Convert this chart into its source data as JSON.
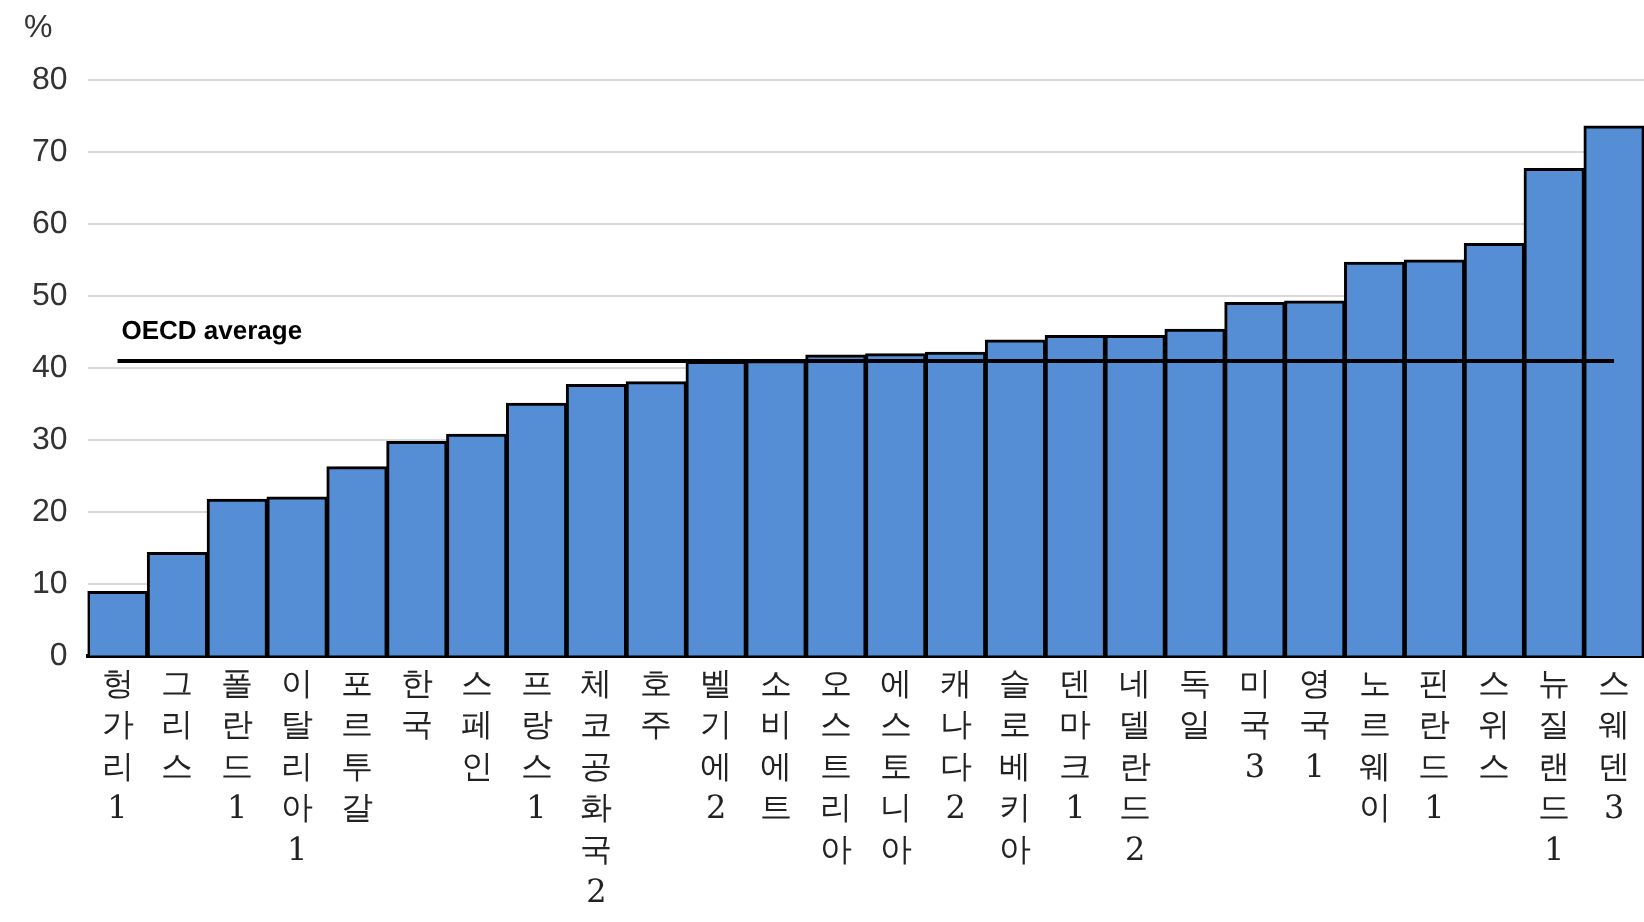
{
  "chart_data": {
    "type": "bar",
    "ylabel": "%",
    "categories": [
      "헝가리1",
      "그리스",
      "폴란드1",
      "이탈리아1",
      "포르투갈",
      "한국",
      "스페인",
      "프랑스1",
      "체코공화국2",
      "호주",
      "벨기에2",
      "소비에트",
      "오스트리아",
      "에스토니아",
      "캐나다2",
      "슬로베키아",
      "덴마크1",
      "네델란드2",
      "독일",
      "미국3",
      "영국1",
      "노르웨이",
      "핀란드1",
      "스위스",
      "뉴질랜드1",
      "스웨덴3"
    ],
    "values": [
      9,
      14.4,
      21.8,
      22.1,
      26.3,
      29.8,
      30.8,
      35.1,
      37.7,
      38.1,
      40.9,
      41,
      41.8,
      42,
      42.2,
      43.9,
      44.5,
      44.5,
      45.4,
      49.1,
      49.3,
      54.7,
      55,
      57.3,
      67.7,
      73.6
    ],
    "color": "#558ed5",
    "ylim": [
      0,
      80
    ],
    "yticks": [
      0,
      10,
      20,
      30,
      40,
      50,
      60,
      70,
      80
    ],
    "grid": "y",
    "legend": false,
    "ref_lines": [
      {
        "axis": "y",
        "value": 41,
        "label": "OECD average",
        "color": "#000000"
      }
    ]
  }
}
